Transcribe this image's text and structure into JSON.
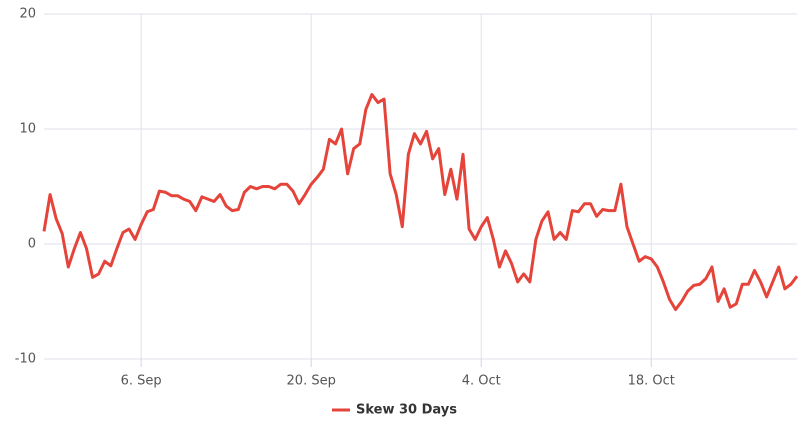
{
  "chart_data": {
    "type": "line",
    "x": [
      -2,
      -1.5,
      -1,
      -0.5,
      0,
      0.5,
      1,
      1.5,
      2,
      2.5,
      3,
      3.5,
      4,
      4.5,
      5,
      5.5,
      6,
      6.5,
      7,
      7.5,
      8,
      8.5,
      9,
      9.5,
      10,
      10.5,
      11,
      11.5,
      12,
      12.5,
      13,
      13.5,
      14,
      14.5,
      15,
      15.5,
      16,
      16.5,
      17,
      17.5,
      18,
      18.5,
      19,
      19.5,
      20,
      20.5,
      21,
      21.5,
      22,
      22.5,
      23,
      23.5,
      24,
      24.5,
      25,
      25.5,
      26,
      26.5,
      27,
      27.5,
      28,
      28.5,
      29,
      29.5,
      30,
      30.5,
      31,
      31.5,
      32,
      32.5,
      33,
      33.5,
      34,
      34.5,
      35,
      35.5,
      36,
      36.5,
      37,
      37.5,
      38,
      38.5,
      39,
      39.5,
      40,
      40.5,
      41,
      41.5,
      42,
      42.5,
      43,
      43.5,
      44,
      44.5,
      45,
      45.5,
      46,
      46.5,
      47,
      47.5,
      48,
      48.5,
      49,
      49.5,
      50,
      50.5,
      51,
      51.5,
      52,
      52.5,
      53,
      53.5,
      54,
      54.5,
      55,
      55.5,
      56,
      56.5,
      57,
      57.5,
      58,
      58.5,
      59,
      59.5,
      60
    ],
    "series": [
      {
        "name": "Skew 30 Days",
        "color": "#e5443a",
        "values": [
          1.1,
          4.3,
          2.2,
          0.9,
          -2,
          -0.4,
          1.0,
          -0.4,
          -2.9,
          -2.6,
          -1.5,
          -1.9,
          -0.4,
          1.0,
          1.3,
          0.4,
          1.7,
          2.8,
          3.0,
          4.6,
          4.5,
          4.2,
          4.2,
          3.9,
          3.7,
          2.9,
          4.1,
          3.9,
          3.7,
          4.3,
          3.3,
          2.9,
          3.0,
          4.5,
          5.0,
          4.8,
          5.0,
          5.0,
          4.8,
          5.2,
          5.2,
          4.6,
          3.5,
          4.3,
          5.2,
          5.8,
          6.5,
          9.1,
          8.7,
          10.0,
          6.1,
          8.3,
          8.7,
          11.7,
          13.0,
          12.3,
          12.6,
          6.1,
          4.3,
          1.5,
          7.8,
          9.6,
          8.7,
          9.8,
          7.4,
          8.3,
          4.3,
          6.5,
          3.9,
          7.8,
          1.3,
          0.4,
          1.5,
          2.3,
          0.4,
          -2,
          -0.6,
          -1.7,
          -3.3,
          -2.6,
          -3.3,
          0.4,
          2.0,
          2.8,
          0.4,
          1.0,
          0.4,
          2.9,
          2.8,
          3.5,
          3.5,
          2.4,
          3.0,
          2.9,
          2.9,
          5.2,
          1.5,
          0,
          -1.5,
          -1.1,
          -1.3,
          -2.0,
          -3.3,
          -4.8,
          -5.7,
          -5.0,
          -4.1,
          -3.6,
          -3.5,
          -3.0,
          -2.0,
          -5.0,
          -3.9,
          -5.5,
          -5.2,
          -3.5,
          -3.5,
          -2.3,
          -3.3,
          -4.6,
          -3.3,
          -2.0,
          -3.9,
          -3.5,
          -2.8
        ]
      }
    ],
    "xlim": [
      -2,
      60
    ],
    "xticks": [
      {
        "value": 6,
        "label": "6. Sep"
      },
      {
        "value": 20,
        "label": "20. Sep"
      },
      {
        "value": 34,
        "label": "4. Oct"
      },
      {
        "value": 48,
        "label": "18. Oct"
      }
    ],
    "ylim": [
      -10,
      20
    ],
    "yticks": [
      -10,
      0,
      10,
      20
    ],
    "grid": true,
    "legend": "bottom"
  }
}
